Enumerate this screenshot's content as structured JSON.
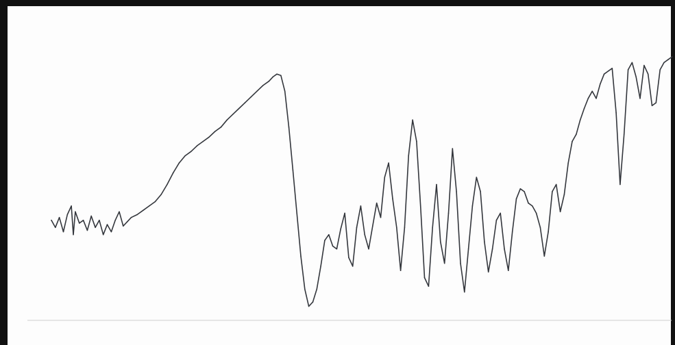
{
  "chart_data": {
    "type": "line",
    "title": "",
    "xlabel": "",
    "ylabel": "",
    "grid": false,
    "legend": "none",
    "series_color": "#33363c",
    "frame_color": "#111111",
    "series": [
      {
        "points": [
          [
            0.0,
            0.6
          ],
          [
            0.4,
            0.55
          ],
          [
            0.8,
            0.62
          ],
          [
            1.2,
            0.52
          ],
          [
            1.6,
            0.64
          ],
          [
            2.0,
            0.7
          ],
          [
            2.2,
            0.5
          ],
          [
            2.4,
            0.66
          ],
          [
            2.8,
            0.58
          ],
          [
            3.2,
            0.6
          ],
          [
            3.6,
            0.53
          ],
          [
            4.0,
            0.63
          ],
          [
            4.4,
            0.55
          ],
          [
            4.8,
            0.6
          ],
          [
            5.2,
            0.5
          ],
          [
            5.6,
            0.57
          ],
          [
            6.0,
            0.52
          ],
          [
            6.4,
            0.6
          ],
          [
            6.8,
            0.66
          ],
          [
            7.2,
            0.56
          ],
          [
            7.6,
            0.59
          ],
          [
            8.0,
            0.62
          ],
          [
            8.6,
            0.64
          ],
          [
            9.2,
            0.67
          ],
          [
            9.8,
            0.7
          ],
          [
            10.4,
            0.73
          ],
          [
            11.0,
            0.78
          ],
          [
            11.6,
            0.85
          ],
          [
            12.2,
            0.93
          ],
          [
            12.8,
            1.0
          ],
          [
            13.4,
            1.05
          ],
          [
            14.0,
            1.08
          ],
          [
            14.6,
            1.12
          ],
          [
            15.2,
            1.15
          ],
          [
            15.8,
            1.18
          ],
          [
            16.4,
            1.22
          ],
          [
            17.0,
            1.25
          ],
          [
            17.6,
            1.3
          ],
          [
            18.2,
            1.34
          ],
          [
            18.8,
            1.38
          ],
          [
            19.4,
            1.42
          ],
          [
            20.0,
            1.46
          ],
          [
            20.6,
            1.5
          ],
          [
            21.2,
            1.54
          ],
          [
            21.8,
            1.57
          ],
          [
            22.2,
            1.6
          ],
          [
            22.6,
            1.62
          ],
          [
            23.0,
            1.61
          ],
          [
            23.4,
            1.5
          ],
          [
            23.8,
            1.25
          ],
          [
            24.2,
            0.95
          ],
          [
            24.6,
            0.65
          ],
          [
            25.0,
            0.35
          ],
          [
            25.4,
            0.12
          ],
          [
            25.8,
            0.0
          ],
          [
            26.2,
            0.03
          ],
          [
            26.6,
            0.12
          ],
          [
            27.0,
            0.28
          ],
          [
            27.4,
            0.46
          ],
          [
            27.8,
            0.5
          ],
          [
            28.2,
            0.42
          ],
          [
            28.6,
            0.4
          ],
          [
            29.0,
            0.54
          ],
          [
            29.4,
            0.65
          ],
          [
            29.8,
            0.34
          ],
          [
            30.2,
            0.28
          ],
          [
            30.6,
            0.55
          ],
          [
            31.0,
            0.7
          ],
          [
            31.4,
            0.5
          ],
          [
            31.8,
            0.4
          ],
          [
            32.2,
            0.56
          ],
          [
            32.6,
            0.72
          ],
          [
            33.0,
            0.62
          ],
          [
            33.4,
            0.9
          ],
          [
            33.8,
            1.0
          ],
          [
            34.2,
            0.75
          ],
          [
            34.6,
            0.55
          ],
          [
            35.0,
            0.25
          ],
          [
            35.4,
            0.55
          ],
          [
            35.8,
            1.05
          ],
          [
            36.2,
            1.3
          ],
          [
            36.6,
            1.15
          ],
          [
            37.0,
            0.7
          ],
          [
            37.4,
            0.2
          ],
          [
            37.8,
            0.14
          ],
          [
            38.2,
            0.55
          ],
          [
            38.6,
            0.85
          ],
          [
            39.0,
            0.45
          ],
          [
            39.4,
            0.3
          ],
          [
            39.8,
            0.65
          ],
          [
            40.2,
            1.1
          ],
          [
            40.6,
            0.8
          ],
          [
            41.0,
            0.3
          ],
          [
            41.4,
            0.1
          ],
          [
            41.8,
            0.4
          ],
          [
            42.2,
            0.7
          ],
          [
            42.6,
            0.9
          ],
          [
            43.0,
            0.8
          ],
          [
            43.4,
            0.45
          ],
          [
            43.8,
            0.24
          ],
          [
            44.2,
            0.4
          ],
          [
            44.6,
            0.6
          ],
          [
            45.0,
            0.65
          ],
          [
            45.4,
            0.4
          ],
          [
            45.8,
            0.25
          ],
          [
            46.2,
            0.52
          ],
          [
            46.6,
            0.75
          ],
          [
            47.0,
            0.82
          ],
          [
            47.4,
            0.8
          ],
          [
            47.8,
            0.72
          ],
          [
            48.2,
            0.7
          ],
          [
            48.6,
            0.65
          ],
          [
            49.0,
            0.55
          ],
          [
            49.4,
            0.35
          ],
          [
            49.8,
            0.52
          ],
          [
            50.2,
            0.8
          ],
          [
            50.6,
            0.85
          ],
          [
            51.0,
            0.66
          ],
          [
            51.4,
            0.78
          ],
          [
            51.8,
            1.0
          ],
          [
            52.2,
            1.15
          ],
          [
            52.6,
            1.2
          ],
          [
            53.0,
            1.3
          ],
          [
            53.4,
            1.38
          ],
          [
            53.8,
            1.45
          ],
          [
            54.2,
            1.5
          ],
          [
            54.6,
            1.45
          ],
          [
            55.0,
            1.55
          ],
          [
            55.4,
            1.62
          ],
          [
            55.8,
            1.64
          ],
          [
            56.2,
            1.66
          ],
          [
            56.6,
            1.35
          ],
          [
            57.0,
            0.85
          ],
          [
            57.4,
            1.2
          ],
          [
            57.8,
            1.65
          ],
          [
            58.2,
            1.7
          ],
          [
            58.6,
            1.6
          ],
          [
            59.0,
            1.45
          ],
          [
            59.4,
            1.68
          ],
          [
            59.8,
            1.62
          ],
          [
            60.2,
            1.4
          ],
          [
            60.6,
            1.42
          ],
          [
            61.0,
            1.65
          ],
          [
            61.4,
            1.7
          ],
          [
            61.8,
            1.72
          ],
          [
            62.2,
            1.74
          ]
        ]
      }
    ],
    "xlim": [
      0,
      62.5
    ],
    "ylim": [
      -0.05,
      1.85
    ]
  }
}
